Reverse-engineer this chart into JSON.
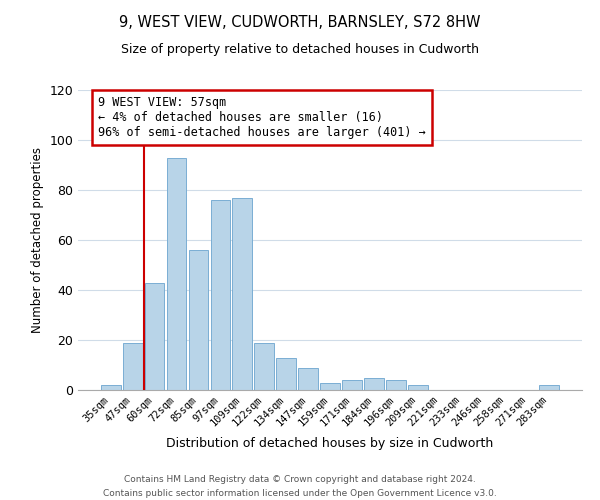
{
  "title": "9, WEST VIEW, CUDWORTH, BARNSLEY, S72 8HW",
  "subtitle": "Size of property relative to detached houses in Cudworth",
  "xlabel": "Distribution of detached houses by size in Cudworth",
  "ylabel": "Number of detached properties",
  "bar_color": "#b8d4e8",
  "bar_edge_color": "#7aaed4",
  "categories": [
    "35sqm",
    "47sqm",
    "60sqm",
    "72sqm",
    "85sqm",
    "97sqm",
    "109sqm",
    "122sqm",
    "134sqm",
    "147sqm",
    "159sqm",
    "171sqm",
    "184sqm",
    "196sqm",
    "209sqm",
    "221sqm",
    "233sqm",
    "246sqm",
    "258sqm",
    "271sqm",
    "283sqm"
  ],
  "values": [
    2,
    19,
    43,
    93,
    56,
    76,
    77,
    19,
    13,
    9,
    3,
    4,
    5,
    4,
    2,
    0,
    0,
    0,
    0,
    0,
    2
  ],
  "ylim": [
    0,
    120
  ],
  "yticks": [
    0,
    20,
    40,
    60,
    80,
    100,
    120
  ],
  "property_line_color": "#cc0000",
  "annotation_text": "9 WEST VIEW: 57sqm\n← 4% of detached houses are smaller (16)\n96% of semi-detached houses are larger (401) →",
  "annotation_box_color": "#ffffff",
  "annotation_box_edge": "#cc0000",
  "footer_line1": "Contains HM Land Registry data © Crown copyright and database right 2024.",
  "footer_line2": "Contains public sector information licensed under the Open Government Licence v3.0.",
  "background_color": "#ffffff",
  "grid_color": "#d0dce8"
}
